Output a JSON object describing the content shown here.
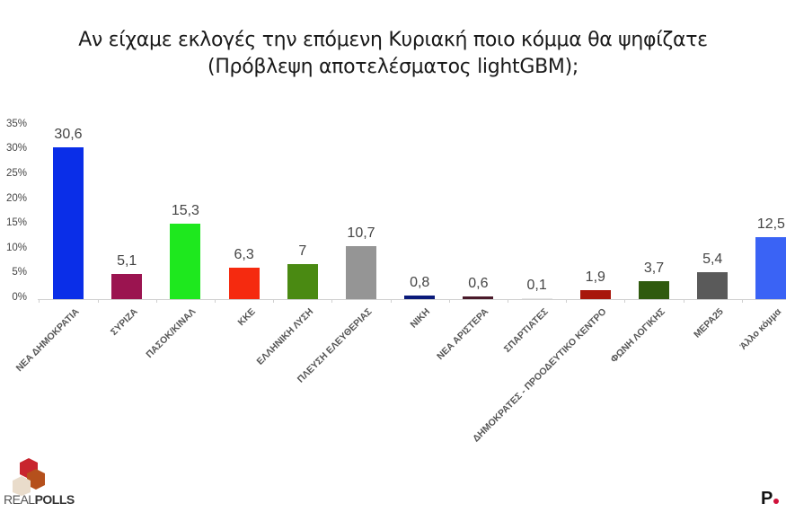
{
  "header": {
    "title_line1": "Αν είχαμε εκλογές την επόμενη Κυριακή ποιο κόμμα θα ψηφίζατε",
    "title_line2": "(Πρόβλεψη αποτελέσματος lightGBM);"
  },
  "branding": {
    "left_logo_thin": "REAL",
    "left_logo_bold": "POLLS",
    "right_logo": "P"
  },
  "chart_data": {
    "type": "bar",
    "title": "Αν είχαμε εκλογές την επόμενη Κυριακή ποιο κόμμα θα ψηφίζατε (Πρόβλεψη αποτελέσματος lightGBM);",
    "xlabel": "",
    "ylabel": "",
    "ylim": [
      0,
      35
    ],
    "yticks": [
      "0%",
      "5%",
      "10%",
      "15%",
      "20%",
      "25%",
      "30%",
      "35%"
    ],
    "grid": false,
    "legend": "none",
    "categories": [
      "ΝΕΑ ΔΗΜΟΚΡΑΤΙΑ",
      "ΣΥΡΙΖΑ",
      "ΠΑΣΟΚ/ΚΙΝΑΛ",
      "ΚΚΕ",
      "ΕΛΛΗΝΙΚΗ ΛΥΣΗ",
      "ΠΛΕΥΣΗ ΕΛΕΥΘΕΡΙΑΣ",
      "ΝΙΚΗ",
      "ΝΕΑ ΑΡΙΣΤΕΡΑ",
      "ΣΠΑΡΤΙΑΤΕΣ",
      "ΔΗΜΟΚΡΑΤΕΣ - ΠΡΟΟΔΕΥΤΙΚΟ ΚΕΝΤΡΟ",
      "ΦΩΝΗ ΛΟΓΙΚΗΣ",
      "ΜΕΡΑ25",
      "Άλλο κόμμα"
    ],
    "values": [
      30.6,
      5.1,
      15.3,
      6.3,
      7,
      10.7,
      0.8,
      0.6,
      0.1,
      1.9,
      3.7,
      5.4,
      12.5
    ],
    "value_labels": [
      "30,6",
      "5,1",
      "15,3",
      "6,3",
      "7",
      "10,7",
      "0,8",
      "0,6",
      "0,1",
      "1,9",
      "3,7",
      "5,4",
      "12,5"
    ],
    "colors": [
      "#0a2ee8",
      "#9b1450",
      "#1ee81e",
      "#f52a0f",
      "#4a8a12",
      "#959595",
      "#0a1a7a",
      "#4a1a2a",
      "#e6e6e6",
      "#a8170c",
      "#2f5a0e",
      "#5a5a5a",
      "#3a63f5"
    ]
  }
}
